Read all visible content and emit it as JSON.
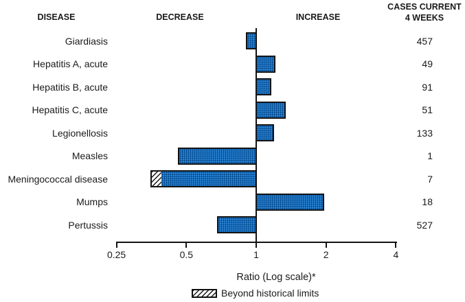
{
  "chart_data": {
    "type": "bar",
    "orientation": "horizontal",
    "x_scale": "log2",
    "headers": {
      "disease": "DISEASE",
      "decrease": "DECREASE",
      "increase": "INCREASE",
      "cases": "CASES CURRENT\n4 WEEKS"
    },
    "x_axis": {
      "label": "Ratio (Log scale)*",
      "ticks": [
        {
          "label": "0.25",
          "value": 0.25
        },
        {
          "label": "0.5",
          "value": 0.5
        },
        {
          "label": "1",
          "value": 1
        },
        {
          "label": "2",
          "value": 2
        },
        {
          "label": "4",
          "value": 4
        }
      ],
      "range": [
        0.25,
        4
      ]
    },
    "rows": [
      {
        "disease": "Giardiasis",
        "ratio": 0.9,
        "cases": "457",
        "beyond_limits": false
      },
      {
        "disease": "Hepatitis A, acute",
        "ratio": 1.21,
        "cases": "49",
        "beyond_limits": false
      },
      {
        "disease": "Hepatitis B, acute",
        "ratio": 1.16,
        "cases": "91",
        "beyond_limits": false
      },
      {
        "disease": "Hepatitis C, acute",
        "ratio": 1.34,
        "cases": "51",
        "beyond_limits": false
      },
      {
        "disease": "Legionellosis",
        "ratio": 1.19,
        "cases": "133",
        "beyond_limits": false
      },
      {
        "disease": "Measles",
        "ratio": 0.46,
        "cases": "1",
        "beyond_limits": false
      },
      {
        "disease": "Meningococcal disease",
        "ratio": 0.35,
        "cases": "7",
        "beyond_limits": true,
        "historical_limit": 0.39
      },
      {
        "disease": "Mumps",
        "ratio": 1.96,
        "cases": "18",
        "beyond_limits": false
      },
      {
        "disease": "Pertussis",
        "ratio": 0.68,
        "cases": "527",
        "beyond_limits": false
      }
    ],
    "legend": [
      {
        "label": "Beyond historical limits",
        "style": "hatched"
      }
    ],
    "colors": {
      "bar_fill": "#0d70c9",
      "bar_border": "#111111",
      "hatch_line": "#161616",
      "hatch_bg": "#fdfdfd",
      "text": "#1a1a1a"
    }
  }
}
